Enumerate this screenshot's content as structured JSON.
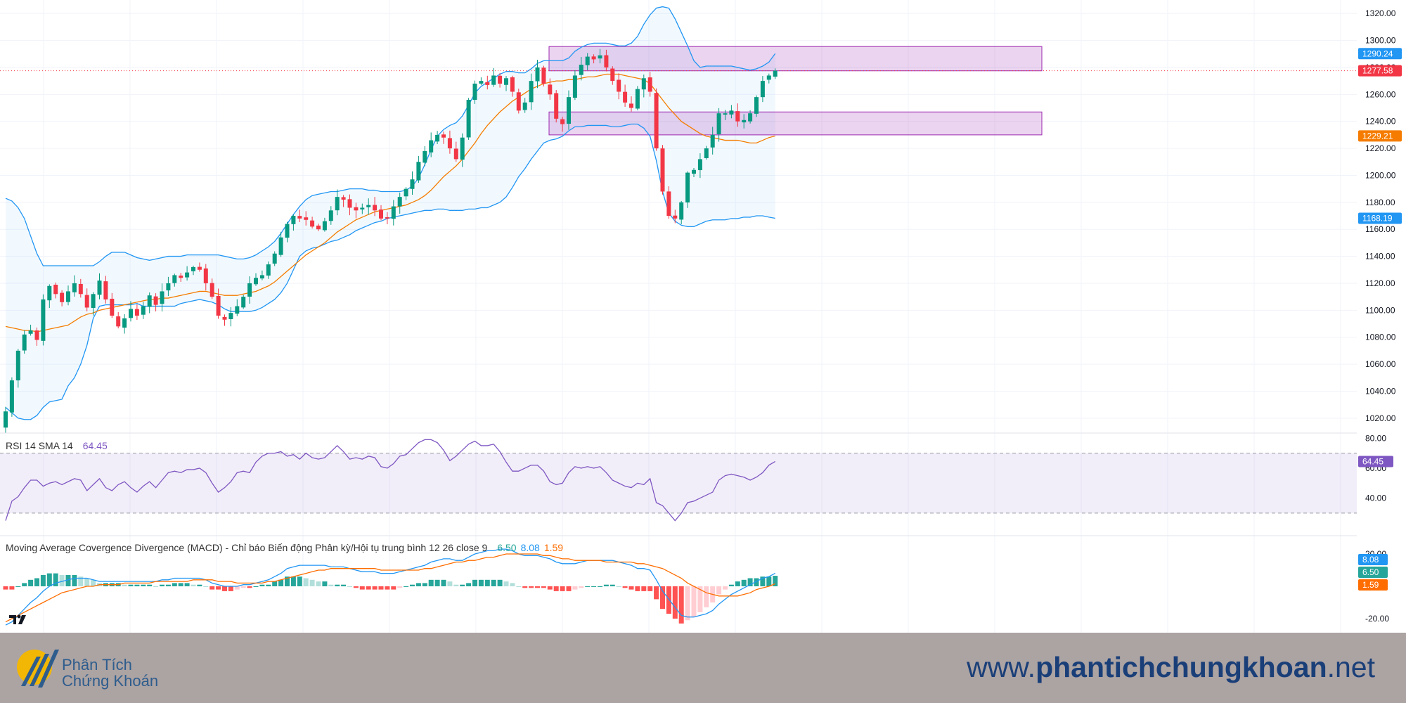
{
  "chart_data": [
    {
      "type": "candlestick",
      "title": "",
      "ylim": [
        1010,
        1330
      ],
      "y_ticks": [
        "1320.00",
        "1300.00",
        "1280.00",
        "1260.00",
        "1240.00",
        "1220.00",
        "1200.00",
        "1180.00",
        "1160.00",
        "1140.00",
        "1120.00",
        "1100.00",
        "1080.00",
        "1060.00",
        "1040.00",
        "1020.00"
      ],
      "price_badges": [
        {
          "label": "1290.24",
          "value": 1290.24,
          "color": "#2196f3"
        },
        {
          "label": "1277.58",
          "value": 1277.58,
          "color": "#f23645"
        },
        {
          "label": "1229.21",
          "value": 1229.21,
          "color": "#f57c00"
        },
        {
          "label": "1168.19",
          "value": 1168.19,
          "color": "#2196f3"
        }
      ],
      "last_price": 1277.58,
      "zones": [
        {
          "from": 1277.5,
          "to": 1295.5
        },
        {
          "from": 1230,
          "to": 1247
        }
      ],
      "closes": [
        1025,
        1048,
        1070,
        1082,
        1085,
        1078,
        1108,
        1118,
        1112,
        1106,
        1114,
        1120,
        1112,
        1102,
        1112,
        1122,
        1108,
        1096,
        1088,
        1094,
        1101,
        1096,
        1103,
        1111,
        1104,
        1114,
        1120,
        1126,
        1124,
        1128,
        1132,
        1130,
        1120,
        1110,
        1096,
        1093,
        1098,
        1103,
        1110,
        1120,
        1124,
        1126,
        1134,
        1142,
        1154,
        1164,
        1170,
        1168,
        1167,
        1162,
        1160,
        1166,
        1174,
        1184,
        1182,
        1176,
        1174,
        1176,
        1178,
        1174,
        1168,
        1168,
        1177,
        1184,
        1190,
        1197,
        1210,
        1218,
        1226,
        1230,
        1228,
        1220,
        1212,
        1228,
        1256,
        1268,
        1270,
        1267,
        1274,
        1268,
        1272,
        1262,
        1248,
        1254,
        1270,
        1280,
        1268,
        1260,
        1242,
        1238,
        1258,
        1274,
        1282,
        1288,
        1286,
        1289,
        1280,
        1270,
        1262,
        1254,
        1250,
        1264,
        1272,
        1262,
        1220,
        1188,
        1170,
        1168,
        1180,
        1202,
        1204,
        1212,
        1220,
        1230,
        1246,
        1246,
        1248,
        1240,
        1241,
        1246,
        1258,
        1270,
        1274,
        1277.58
      ],
      "sma20": [
        1088,
        1087,
        1086,
        1085,
        1085,
        1084,
        1085,
        1086,
        1087,
        1088,
        1089,
        1092,
        1095,
        1097,
        1098,
        1100,
        1101,
        1102,
        1103,
        1104,
        1105,
        1106,
        1107,
        1108,
        1108,
        1109,
        1109,
        1110,
        1111,
        1112,
        1113,
        1114,
        1114,
        1113,
        1112,
        1111,
        1111,
        1111,
        1112,
        1113,
        1114,
        1116,
        1118,
        1121,
        1125,
        1129,
        1133,
        1137,
        1141,
        1144,
        1147,
        1150,
        1154,
        1158,
        1161,
        1164,
        1167,
        1169,
        1171,
        1173,
        1174,
        1175,
        1176,
        1177,
        1178,
        1180,
        1182,
        1185,
        1189,
        1194,
        1199,
        1203,
        1207,
        1212,
        1218,
        1224,
        1231,
        1237,
        1242,
        1247,
        1251,
        1255,
        1258,
        1261,
        1264,
        1266,
        1268,
        1269,
        1270,
        1270,
        1271,
        1271,
        1272,
        1273,
        1273,
        1274,
        1275,
        1275,
        1275,
        1274,
        1273,
        1272,
        1271,
        1268,
        1262,
        1256,
        1250,
        1245,
        1240,
        1237,
        1234,
        1231,
        1229,
        1228,
        1227,
        1226,
        1226,
        1226,
        1225,
        1224,
        1224,
        1226,
        1228,
        1229.21
      ],
      "bb_upper": [
        1183,
        1181,
        1176,
        1168,
        1155,
        1142,
        1133,
        1133,
        1133,
        1133,
        1133,
        1133,
        1133,
        1133,
        1133,
        1136,
        1140,
        1143,
        1143,
        1143,
        1141,
        1139,
        1138,
        1137,
        1138,
        1139,
        1140,
        1140,
        1140,
        1141,
        1141,
        1141,
        1141,
        1141,
        1141,
        1140,
        1139,
        1138,
        1138,
        1139,
        1141,
        1144,
        1147,
        1151,
        1157,
        1164,
        1171,
        1177,
        1182,
        1185,
        1186,
        1187,
        1188,
        1188,
        1189,
        1190,
        1190,
        1190,
        1189,
        1189,
        1188,
        1188,
        1188,
        1188,
        1189,
        1192,
        1198,
        1208,
        1219,
        1229,
        1234,
        1237,
        1239,
        1244,
        1252,
        1261,
        1266,
        1269,
        1272,
        1275,
        1277,
        1277,
        1276,
        1276,
        1279,
        1283,
        1285,
        1285,
        1285,
        1285,
        1287,
        1292,
        1295,
        1297,
        1298,
        1298,
        1298,
        1297,
        1296,
        1296,
        1298,
        1303,
        1312,
        1319,
        1324,
        1325,
        1324,
        1316,
        1306,
        1296,
        1285,
        1280,
        1281,
        1281,
        1281,
        1281,
        1281,
        1280,
        1279,
        1278,
        1279,
        1281,
        1284,
        1290.24
      ],
      "bb_lower": [
        1028,
        1024,
        1020,
        1019,
        1019,
        1022,
        1028,
        1032,
        1033,
        1034,
        1044,
        1050,
        1060,
        1074,
        1094,
        1103,
        1104,
        1104,
        1104,
        1104,
        1104,
        1105,
        1103,
        1103,
        1103,
        1103,
        1103,
        1103,
        1105,
        1106,
        1107,
        1108,
        1107,
        1106,
        1104,
        1101,
        1099,
        1099,
        1099,
        1099,
        1100,
        1102,
        1105,
        1108,
        1113,
        1120,
        1130,
        1140,
        1144,
        1146,
        1147,
        1149,
        1151,
        1152,
        1154,
        1156,
        1159,
        1161,
        1163,
        1165,
        1166,
        1168,
        1169,
        1170,
        1171,
        1172,
        1173,
        1174,
        1174,
        1175,
        1175,
        1174,
        1174,
        1174,
        1175,
        1175,
        1176,
        1176,
        1178,
        1180,
        1184,
        1191,
        1199,
        1205,
        1212,
        1218,
        1224,
        1226,
        1227,
        1229,
        1233,
        1236,
        1236,
        1237,
        1237,
        1237,
        1237,
        1236,
        1236,
        1237,
        1238,
        1238,
        1235,
        1229,
        1211,
        1188,
        1172,
        1166,
        1163,
        1162,
        1162,
        1164,
        1166,
        1167,
        1167,
        1167,
        1168,
        1168,
        1169,
        1169,
        1170,
        1170,
        1169,
        1168.19
      ]
    },
    {
      "type": "line",
      "title": "RSI 14 SMA 14",
      "value_label": "64.45",
      "current_value": 64.45,
      "band": [
        30,
        70
      ],
      "y_ticks": [
        "80.00",
        "60.00",
        "40.00"
      ],
      "ylim": [
        22,
        82
      ],
      "values": [
        25,
        38,
        41,
        47,
        52,
        52,
        48,
        50,
        51,
        49,
        51,
        53,
        52,
        45,
        49,
        53,
        47,
        45,
        49,
        51,
        47,
        44,
        48,
        51,
        47,
        52,
        57,
        58,
        57,
        59,
        59,
        60,
        57,
        50,
        44,
        47,
        51,
        57,
        58,
        57,
        64,
        68,
        70,
        70,
        71,
        68,
        69,
        66,
        70,
        67,
        66,
        67,
        71,
        75,
        71,
        66,
        67,
        66,
        68,
        67,
        61,
        60,
        63,
        68,
        69,
        73,
        77,
        79,
        79,
        77,
        72,
        65,
        68,
        72,
        76,
        78,
        75,
        75,
        76,
        71,
        64,
        58,
        58,
        60,
        62,
        62,
        58,
        51,
        49,
        50,
        57,
        61,
        60,
        61,
        60,
        61,
        57,
        52,
        50,
        48,
        47,
        50,
        49,
        53,
        37,
        35,
        30,
        25,
        30,
        37,
        38,
        40,
        42,
        44,
        52,
        55,
        56,
        55,
        54,
        52,
        54,
        57,
        62,
        64.45
      ]
    },
    {
      "type": "macd",
      "title": "Moving Average Covergence Divergence (MACD) - Chỉ báo Biến động Phân kỳ/Hội tụ trung bình 12 26 close 9",
      "value_labels": [
        {
          "text": "6.50",
          "color": "#26a69a"
        },
        {
          "text": "8.08",
          "color": "#2196f3"
        },
        {
          "text": "1.59",
          "color": "#ff6d00"
        }
      ],
      "y_ticks": [
        "20.00",
        "-20.00"
      ],
      "ylim": [
        -25,
        25
      ],
      "badges": [
        {
          "label": "8.08",
          "value": 8.08,
          "color": "#2196f3"
        },
        {
          "label": "6.50",
          "value": 6.5,
          "color": "#26a69a"
        },
        {
          "label": "1.59",
          "value": 1.59,
          "color": "#ff6d00"
        }
      ],
      "macd": [
        -24,
        -22,
        -18,
        -14,
        -10,
        -7,
        -3,
        0,
        2,
        3,
        4,
        5,
        5,
        5,
        4,
        3,
        3,
        3,
        3,
        3,
        3,
        3,
        3,
        3,
        3,
        4,
        4,
        5,
        5,
        5,
        5,
        5,
        4,
        2,
        1,
        0,
        0,
        0,
        1,
        1,
        2,
        3,
        4,
        6,
        8,
        11,
        12,
        13,
        13,
        13,
        13,
        13,
        12,
        12,
        12,
        11,
        10,
        9,
        9,
        9,
        8,
        8,
        8,
        9,
        10,
        11,
        12,
        13,
        15,
        16,
        17,
        17,
        16,
        16,
        18,
        20,
        21,
        22,
        22,
        23,
        23,
        22,
        20,
        19,
        19,
        19,
        18,
        17,
        15,
        14,
        14,
        14,
        15,
        16,
        16,
        16,
        16,
        16,
        15,
        14,
        13,
        11,
        11,
        10,
        4,
        -3,
        -8,
        -13,
        -18,
        -19,
        -19,
        -18,
        -17,
        -15,
        -11,
        -8,
        -5,
        -3,
        -1,
        1,
        3,
        5,
        6,
        8.08
      ],
      "signal": [
        -22,
        -20,
        -18,
        -16,
        -14,
        -12,
        -10,
        -8,
        -6,
        -4,
        -3,
        -2,
        -1,
        0,
        0,
        1,
        1,
        1,
        1,
        2,
        2,
        2,
        2,
        2,
        3,
        3,
        3,
        3,
        3,
        3,
        4,
        4,
        4,
        4,
        3,
        3,
        3,
        2,
        2,
        2,
        2,
        2,
        3,
        3,
        4,
        5,
        6,
        7,
        8,
        9,
        10,
        10,
        11,
        11,
        11,
        11,
        11,
        11,
        11,
        11,
        10,
        10,
        10,
        10,
        10,
        10,
        10,
        11,
        11,
        12,
        13,
        14,
        15,
        15,
        16,
        16,
        17,
        18,
        18,
        19,
        20,
        20,
        20,
        20,
        20,
        20,
        19,
        19,
        18,
        17,
        17,
        16,
        16,
        16,
        16,
        16,
        15,
        15,
        15,
        15,
        15,
        14,
        14,
        13,
        12,
        11,
        9,
        7,
        5,
        2,
        0,
        -2,
        -4,
        -5,
        -6,
        -6,
        -6,
        -6,
        -5,
        -4,
        -2,
        -1,
        0,
        1.59
      ]
    }
  ],
  "footer": {
    "brand_line1": "Phân Tích",
    "brand_line2": "Chứng Khoán",
    "site_prefix": "www.",
    "site_domain": "phantichchungkhoan",
    "site_suffix": ".net"
  }
}
